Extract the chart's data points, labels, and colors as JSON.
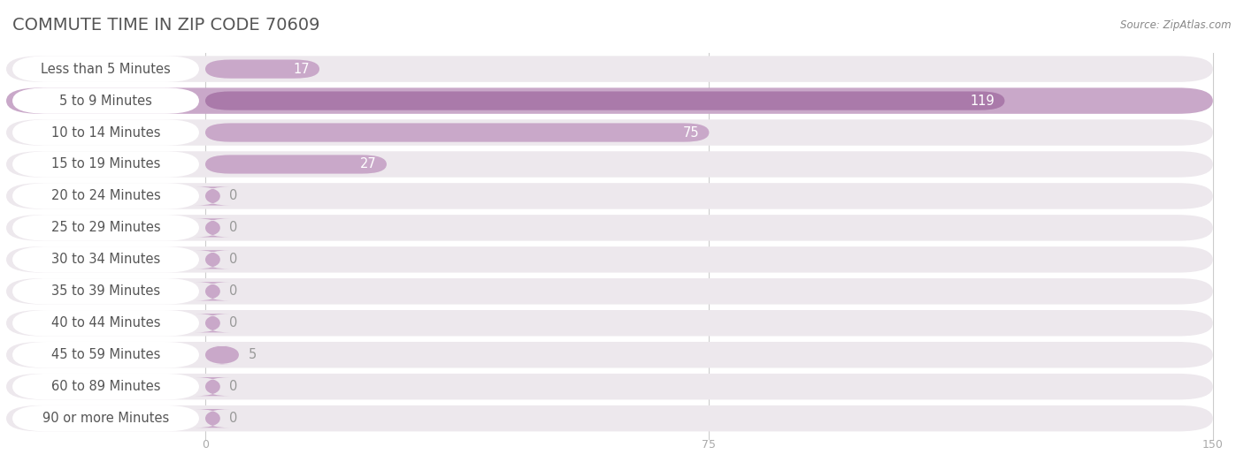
{
  "title": "COMMUTE TIME IN ZIP CODE 70609",
  "source": "Source: ZipAtlas.com",
  "categories": [
    "Less than 5 Minutes",
    "5 to 9 Minutes",
    "10 to 14 Minutes",
    "15 to 19 Minutes",
    "20 to 24 Minutes",
    "25 to 29 Minutes",
    "30 to 34 Minutes",
    "35 to 39 Minutes",
    "40 to 44 Minutes",
    "45 to 59 Minutes",
    "60 to 89 Minutes",
    "90 or more Minutes"
  ],
  "values": [
    17,
    119,
    75,
    27,
    0,
    0,
    0,
    0,
    0,
    5,
    0,
    0
  ],
  "bar_color_normal": "#c9a8c9",
  "bar_color_highlight": "#aa7aaa",
  "highlight_index": 1,
  "row_bg_color": "#ede8ed",
  "row_bg_highlight": "#c9a8c9",
  "xlim_data": 150,
  "xticks": [
    0,
    75,
    150
  ],
  "background_color": "#ffffff",
  "row_sep_color": "#e8e8e8",
  "title_color": "#555555",
  "label_color": "#555555",
  "value_color_on_bar": "#ffffff",
  "value_color_off_bar": "#999999",
  "title_fontsize": 14,
  "label_fontsize": 10.5,
  "value_fontsize": 10.5,
  "axis_tick_color": "#aaaaaa",
  "grid_color": "#cccccc",
  "source_color": "#888888"
}
